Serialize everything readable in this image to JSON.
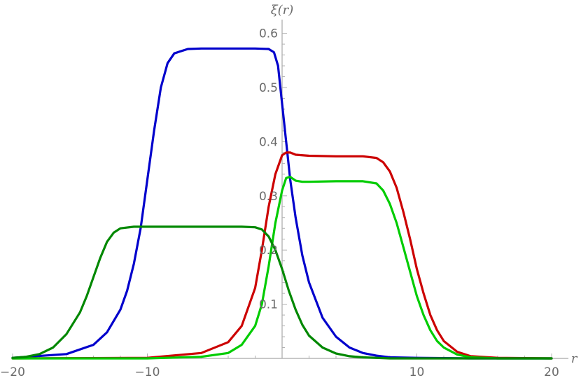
{
  "chart_data": {
    "type": "line",
    "title": "",
    "xlabel": "r",
    "ylabel": "ξ(r)",
    "xlim": [
      -20,
      20
    ],
    "ylim": [
      0,
      0.6
    ],
    "x_ticks": [
      -20,
      -10,
      10,
      20
    ],
    "x_tick_labels": [
      "−20",
      "−10",
      "10",
      "20"
    ],
    "y_ticks": [
      0.1,
      0.2,
      0.3,
      0.4,
      0.5,
      0.6
    ],
    "y_tick_labels": [
      "0.1",
      "0.2",
      "0.3",
      "0.4",
      "0.5",
      "0.6"
    ],
    "grid": false,
    "series": [
      {
        "color": "#0000cc",
        "x": [
          -20,
          -16,
          -14,
          -13,
          -12,
          -11.5,
          -11,
          -10.5,
          -10,
          -9.5,
          -9,
          -8.5,
          -8,
          -7,
          -6,
          -4,
          -2,
          -1,
          -0.6,
          -0.3,
          0,
          0.3,
          0.6,
          1,
          1.5,
          2,
          3,
          4,
          5,
          6,
          7,
          8,
          10,
          14,
          20
        ],
        "y": [
          0.001,
          0.008,
          0.025,
          0.048,
          0.09,
          0.125,
          0.175,
          0.24,
          0.33,
          0.42,
          0.5,
          0.545,
          0.563,
          0.571,
          0.572,
          0.572,
          0.572,
          0.571,
          0.565,
          0.54,
          0.47,
          0.4,
          0.33,
          0.26,
          0.19,
          0.14,
          0.075,
          0.04,
          0.02,
          0.01,
          0.005,
          0.002,
          0.001,
          0.0,
          0.0
        ]
      },
      {
        "color": "#cc0000",
        "x": [
          -20,
          -10,
          -6,
          -4,
          -3,
          -2,
          -1.5,
          -1,
          -0.5,
          0,
          0.3,
          0.6,
          1,
          2,
          4,
          6,
          7,
          7.5,
          8,
          8.5,
          9,
          9.5,
          10,
          10.5,
          11,
          11.5,
          12,
          13,
          14,
          16,
          20
        ],
        "y": [
          0.0,
          0.001,
          0.01,
          0.03,
          0.06,
          0.13,
          0.2,
          0.28,
          0.34,
          0.375,
          0.38,
          0.38,
          0.376,
          0.374,
          0.373,
          0.373,
          0.37,
          0.362,
          0.345,
          0.315,
          0.27,
          0.22,
          0.165,
          0.12,
          0.08,
          0.052,
          0.032,
          0.012,
          0.004,
          0.001,
          0.0
        ]
      },
      {
        "color": "#00cc00",
        "x": [
          -20,
          -10,
          -6,
          -4,
          -3,
          -2,
          -1.5,
          -1,
          -0.5,
          0,
          0.3,
          0.6,
          1,
          1.5,
          2,
          4,
          6,
          7,
          7.5,
          8,
          8.5,
          9,
          9.5,
          10,
          10.5,
          11,
          11.5,
          12,
          13,
          14,
          16,
          20
        ],
        "y": [
          0.0,
          0.0,
          0.003,
          0.01,
          0.025,
          0.06,
          0.1,
          0.17,
          0.25,
          0.31,
          0.333,
          0.335,
          0.328,
          0.326,
          0.326,
          0.327,
          0.327,
          0.323,
          0.31,
          0.285,
          0.25,
          0.205,
          0.16,
          0.115,
          0.08,
          0.052,
          0.032,
          0.02,
          0.007,
          0.002,
          0.0,
          0.0
        ]
      },
      {
        "color": "#008800",
        "x": [
          -20,
          -19,
          -18,
          -17,
          -16,
          -15,
          -14.5,
          -14,
          -13.5,
          -13,
          -12.5,
          -12,
          -11,
          -9,
          -6,
          -3,
          -2,
          -1.5,
          -1,
          -0.5,
          0,
          0.5,
          1,
          1.5,
          2,
          3,
          4,
          5,
          6,
          8,
          10,
          20
        ],
        "y": [
          0.001,
          0.003,
          0.008,
          0.02,
          0.045,
          0.085,
          0.115,
          0.15,
          0.185,
          0.215,
          0.232,
          0.24,
          0.243,
          0.243,
          0.243,
          0.243,
          0.242,
          0.238,
          0.225,
          0.2,
          0.165,
          0.125,
          0.09,
          0.062,
          0.042,
          0.02,
          0.009,
          0.004,
          0.002,
          0.0,
          0.0,
          0.0
        ]
      }
    ]
  }
}
